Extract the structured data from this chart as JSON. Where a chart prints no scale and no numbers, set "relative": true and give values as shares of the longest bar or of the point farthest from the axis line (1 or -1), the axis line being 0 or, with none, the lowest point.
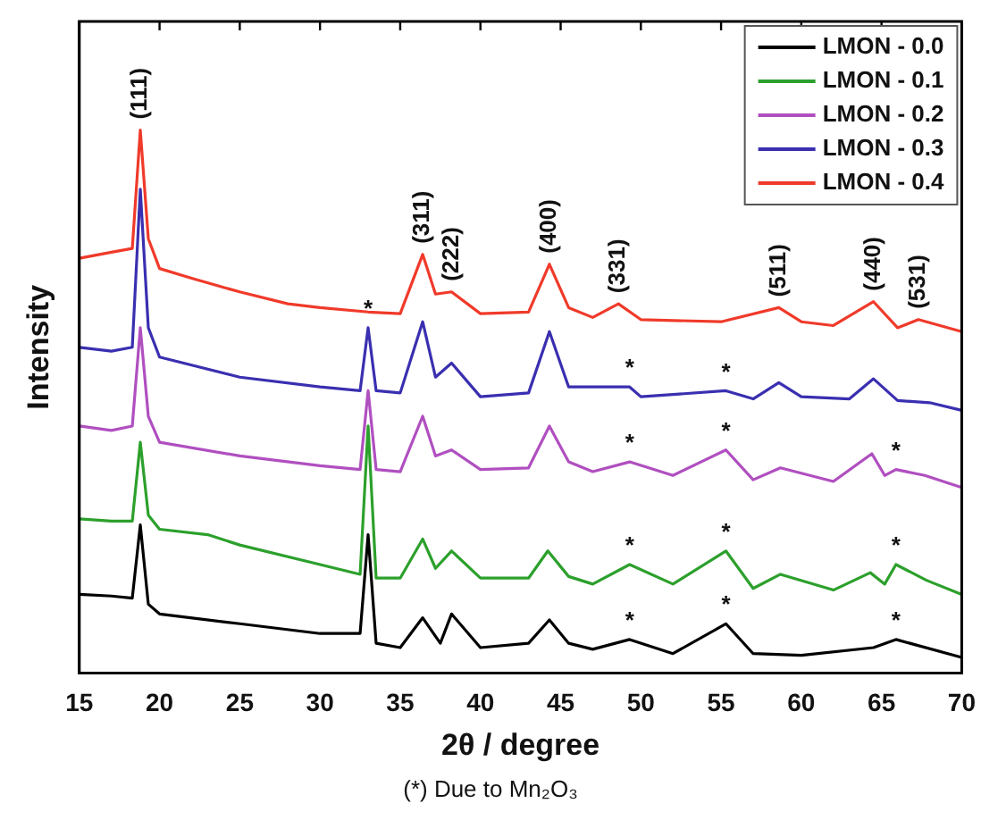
{
  "chart_data": {
    "type": "line",
    "relative": true,
    "xlabel": "2θ / degree",
    "ylabel": "Intensity",
    "xlim": [
      15,
      70
    ],
    "xticks": [
      15,
      20,
      25,
      30,
      35,
      40,
      45,
      50,
      55,
      60,
      65,
      70
    ],
    "legend": "top right",
    "grid": false,
    "marker": "none",
    "line_style": "solid",
    "series": [
      {
        "name": "LMON - 0.0",
        "color": "#000000",
        "x": [
          15,
          17,
          18.3,
          18.8,
          19.3,
          20,
          25,
          30,
          32.5,
          33,
          33.5,
          35,
          36.4,
          37.5,
          38.2,
          40,
          43,
          44.3,
          45.5,
          47,
          49.3,
          52,
          55.3,
          57,
          60,
          64.5,
          65.9,
          70
        ],
        "values": [
          0.145,
          0.142,
          0.138,
          0.273,
          0.127,
          0.109,
          0.091,
          0.073,
          0.073,
          0.255,
          0.055,
          0.047,
          0.102,
          0.055,
          0.109,
          0.047,
          0.055,
          0.098,
          0.055,
          0.044,
          0.062,
          0.036,
          0.091,
          0.036,
          0.033,
          0.047,
          0.062,
          0.029
        ]
      },
      {
        "name": "LMON - 0.1",
        "color": "#2ca02c",
        "x": [
          15,
          17,
          18.3,
          18.8,
          19.3,
          20,
          23,
          25,
          30,
          32.5,
          33,
          33.5,
          35,
          36.4,
          37.2,
          38.2,
          40,
          43,
          44.2,
          45.5,
          47,
          49.3,
          52,
          55.3,
          57,
          58.7,
          62,
          64.3,
          65.2,
          65.9,
          67.8,
          70
        ],
        "values": [
          0.284,
          0.28,
          0.28,
          0.425,
          0.291,
          0.265,
          0.255,
          0.236,
          0.2,
          0.182,
          0.455,
          0.175,
          0.175,
          0.247,
          0.193,
          0.225,
          0.175,
          0.175,
          0.225,
          0.178,
          0.164,
          0.2,
          0.164,
          0.225,
          0.156,
          0.182,
          0.153,
          0.185,
          0.164,
          0.2,
          0.171,
          0.145
        ]
      },
      {
        "name": "LMON - 0.2",
        "color": "#b04fc0",
        "x": [
          15,
          17,
          18.3,
          18.8,
          19.3,
          20,
          25,
          30,
          32.5,
          33,
          33.5,
          35,
          36.4,
          37.2,
          38.2,
          40,
          43,
          44.3,
          45.5,
          47,
          49.3,
          52,
          55.3,
          57,
          58.7,
          62,
          64.4,
          65.2,
          65.9,
          67.7,
          70
        ],
        "values": [
          0.455,
          0.447,
          0.455,
          0.636,
          0.473,
          0.425,
          0.4,
          0.382,
          0.375,
          0.52,
          0.375,
          0.371,
          0.473,
          0.4,
          0.411,
          0.375,
          0.378,
          0.455,
          0.389,
          0.371,
          0.389,
          0.364,
          0.411,
          0.356,
          0.378,
          0.353,
          0.404,
          0.364,
          0.375,
          0.364,
          0.342
        ]
      },
      {
        "name": "LMON - 0.3",
        "color": "#3a2fb0",
        "x": [
          15,
          17,
          18.3,
          18.8,
          19.3,
          20,
          25,
          30,
          32.5,
          33,
          33.5,
          35,
          36.4,
          37.2,
          38.2,
          40,
          43,
          44.3,
          45.5,
          49.3,
          50,
          55.3,
          57,
          58.6,
          60,
          63,
          64.5,
          66,
          68,
          70
        ],
        "values": [
          0.6,
          0.593,
          0.6,
          0.891,
          0.636,
          0.582,
          0.545,
          0.527,
          0.52,
          0.636,
          0.52,
          0.516,
          0.647,
          0.545,
          0.571,
          0.509,
          0.516,
          0.629,
          0.527,
          0.527,
          0.509,
          0.52,
          0.505,
          0.535,
          0.509,
          0.505,
          0.542,
          0.502,
          0.498,
          0.484
        ]
      },
      {
        "name": "LMON - 0.4",
        "color": "#f03a2a",
        "x": [
          15,
          17,
          18.3,
          18.8,
          19.3,
          20,
          22,
          25,
          28,
          30,
          33,
          35,
          36.4,
          37.2,
          38.2,
          40,
          43,
          44.3,
          45.5,
          47,
          48.6,
          50,
          55,
          58.6,
          60,
          62,
          64.5,
          66,
          67.3,
          70
        ],
        "values": [
          0.764,
          0.775,
          0.782,
          1,
          0.8,
          0.745,
          0.727,
          0.702,
          0.68,
          0.673,
          0.665,
          0.662,
          0.771,
          0.698,
          0.702,
          0.662,
          0.665,
          0.753,
          0.673,
          0.655,
          0.68,
          0.651,
          0.647,
          0.673,
          0.647,
          0.64,
          0.684,
          0.636,
          0.651,
          0.629
        ]
      }
    ],
    "annotations": [
      {
        "text": "(111)",
        "x": 18.8,
        "y": 1
      },
      {
        "text": "(311)",
        "x": 36.4,
        "y": 0.771
      },
      {
        "text": "(222)",
        "x": 38.2,
        "y": 0.702
      },
      {
        "text": "(400)",
        "x": 44.3,
        "y": 0.753
      },
      {
        "text": "(331)",
        "x": 48.6,
        "y": 0.68
      },
      {
        "text": "(511)",
        "x": 58.6,
        "y": 0.673
      },
      {
        "text": "(440)",
        "x": 64.5,
        "y": 0.684
      },
      {
        "text": "(531)",
        "x": 67.3,
        "y": 0.651
      },
      {
        "text": "*",
        "x": 33,
        "y": 0.636
      },
      {
        "text": "*",
        "x": 49.3,
        "y": 0.527
      },
      {
        "text": "*",
        "x": 55.3,
        "y": 0.52
      },
      {
        "text": "*",
        "x": 49.3,
        "y": 0.389
      },
      {
        "text": "*",
        "x": 55.3,
        "y": 0.411
      },
      {
        "text": "*",
        "x": 65.9,
        "y": 0.375
      },
      {
        "text": "*",
        "x": 49.3,
        "y": 0.2
      },
      {
        "text": "*",
        "x": 55.3,
        "y": 0.225
      },
      {
        "text": "*",
        "x": 65.9,
        "y": 0.2
      },
      {
        "text": "*",
        "x": 49.3,
        "y": 0.062
      },
      {
        "text": "*",
        "x": 55.3,
        "y": 0.091
      },
      {
        "text": "*",
        "x": 65.9,
        "y": 0.062
      },
      "(*) Due to Mn₂O₃"
    ]
  }
}
